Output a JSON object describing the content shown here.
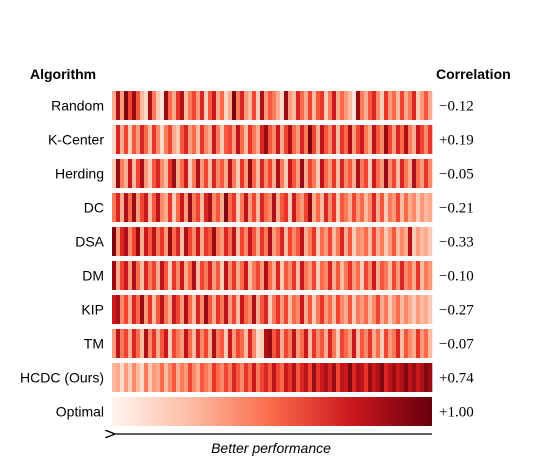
{
  "chart_data": {
    "type": "heatmap",
    "headers": {
      "left": "Algorithm",
      "right": "Correlation"
    },
    "xlabel": "Better performance",
    "rows": [
      {
        "name": "Random",
        "correlation": "−0.12",
        "cells": [
          0.3,
          0.85,
          0.35,
          0.95,
          0.6,
          0.9,
          0.55,
          0.25,
          0.15,
          0.85,
          0.45,
          0.2,
          0.1,
          0.9,
          0.5,
          0.3,
          0.65,
          0.85,
          0.25,
          0.45,
          0.6,
          0.35,
          0.7,
          0.2,
          0.55,
          0.75,
          0.3,
          0.5,
          0.15,
          0.3,
          0.95,
          0.45,
          0.7,
          0.35,
          0.25,
          0.6,
          0.2,
          0.85,
          0.35,
          0.55,
          0.45,
          0.3,
          0.15,
          0.9,
          0.35,
          0.25,
          0.7,
          0.5,
          0.3,
          0.6,
          0.25,
          0.55,
          0.65,
          0.2,
          0.45,
          0.75,
          0.3,
          0.5,
          0.35,
          0.25,
          0.1,
          0.9,
          0.45,
          0.3,
          0.55,
          0.7,
          0.4,
          0.2,
          0.65,
          0.35,
          0.5,
          0.25,
          0.6,
          0.3,
          0.45,
          0.7,
          0.2,
          0.35,
          0.55,
          0.3
        ]
      },
      {
        "name": "K-Center",
        "correlation": "+0.19",
        "cells": [
          0.15,
          0.7,
          0.3,
          0.6,
          0.2,
          0.55,
          0.35,
          0.7,
          0.5,
          0.25,
          0.65,
          0.4,
          0.15,
          0.45,
          0.6,
          0.3,
          0.2,
          0.55,
          0.7,
          0.35,
          0.5,
          0.25,
          0.65,
          0.4,
          0.3,
          0.75,
          0.45,
          0.2,
          0.55,
          0.6,
          0.35,
          0.8,
          0.5,
          0.25,
          0.65,
          0.45,
          0.3,
          0.7,
          0.9,
          0.55,
          0.4,
          0.75,
          0.3,
          0.6,
          0.85,
          0.5,
          0.35,
          0.7,
          0.45,
          0.95,
          0.6,
          0.3,
          0.8,
          0.55,
          0.4,
          0.7,
          0.25,
          0.65,
          0.5,
          0.85,
          0.35,
          0.6,
          0.75,
          0.45,
          0.3,
          0.8,
          0.55,
          0.4,
          0.9,
          0.6,
          0.35,
          0.7,
          0.5,
          0.85,
          0.45,
          0.3,
          0.75,
          0.6,
          0.4,
          0.65
        ]
      },
      {
        "name": "Herding",
        "correlation": "−0.05",
        "cells": [
          0.2,
          0.9,
          0.45,
          0.3,
          0.75,
          0.25,
          0.6,
          0.85,
          0.35,
          0.2,
          0.55,
          0.7,
          0.4,
          0.25,
          0.65,
          0.9,
          0.3,
          0.5,
          0.75,
          0.2,
          0.45,
          0.85,
          0.35,
          0.6,
          0.25,
          0.7,
          0.4,
          0.55,
          0.3,
          0.8,
          0.45,
          0.2,
          0.65,
          0.35,
          0.9,
          0.5,
          0.25,
          0.7,
          0.4,
          0.6,
          0.3,
          0.85,
          0.45,
          0.2,
          0.75,
          0.55,
          0.35,
          0.9,
          0.3,
          0.6,
          0.45,
          0.2,
          0.8,
          0.5,
          0.35,
          0.65,
          0.25,
          0.7,
          0.4,
          0.55,
          0.3,
          0.85,
          0.45,
          0.6,
          0.2,
          0.75,
          0.5,
          0.35,
          0.9,
          0.4,
          0.6,
          0.25,
          0.7,
          0.45,
          0.3,
          0.85,
          0.5,
          0.35,
          0.65,
          0.4
        ]
      },
      {
        "name": "DC",
        "correlation": "−0.21",
        "cells": [
          0.45,
          0.7,
          0.3,
          0.85,
          0.5,
          0.9,
          0.35,
          0.6,
          0.75,
          0.25,
          0.55,
          0.8,
          0.4,
          0.3,
          0.65,
          0.2,
          0.5,
          0.75,
          0.35,
          0.9,
          0.45,
          0.6,
          0.25,
          0.7,
          0.85,
          0.4,
          0.55,
          0.3,
          0.95,
          0.5,
          0.65,
          0.2,
          0.45,
          0.8,
          0.35,
          0.6,
          0.25,
          0.7,
          0.5,
          0.4,
          0.85,
          0.3,
          0.55,
          0.65,
          0.2,
          0.75,
          0.45,
          0.35,
          0.6,
          0.9,
          0.3,
          0.5,
          0.25,
          0.7,
          0.4,
          0.65,
          0.2,
          0.55,
          0.45,
          0.3,
          0.6,
          0.35,
          0.5,
          0.25,
          0.4,
          0.7,
          0.3,
          0.55,
          0.2,
          0.45,
          0.35,
          0.6,
          0.25,
          0.5,
          0.3,
          0.4,
          0.2,
          0.35,
          0.25,
          0.3
        ]
      },
      {
        "name": "DSA",
        "correlation": "−0.33",
        "cells": [
          0.95,
          0.35,
          0.7,
          0.85,
          0.4,
          0.6,
          0.9,
          0.3,
          0.75,
          0.55,
          0.8,
          0.45,
          0.65,
          0.35,
          0.9,
          0.5,
          0.7,
          0.25,
          0.85,
          0.6,
          0.4,
          0.75,
          0.3,
          0.65,
          0.55,
          0.9,
          0.45,
          0.35,
          0.7,
          0.5,
          0.8,
          0.25,
          0.6,
          0.4,
          0.75,
          0.55,
          0.3,
          0.65,
          0.45,
          0.85,
          0.35,
          0.5,
          0.7,
          0.25,
          0.6,
          0.4,
          0.55,
          0.8,
          0.3,
          0.45,
          0.65,
          0.2,
          0.5,
          0.35,
          0.6,
          0.25,
          0.45,
          0.7,
          0.3,
          0.55,
          0.2,
          0.4,
          0.35,
          0.5,
          0.25,
          0.6,
          0.3,
          0.45,
          0.2,
          0.35,
          0.55,
          0.25,
          0.4,
          0.3,
          0.8,
          0.2,
          0.35,
          0.25,
          0.3,
          0.2
        ]
      },
      {
        "name": "DM",
        "correlation": "−0.10",
        "cells": [
          0.9,
          0.3,
          0.6,
          0.75,
          0.35,
          0.85,
          0.5,
          0.25,
          0.7,
          0.45,
          0.6,
          0.3,
          0.8,
          0.55,
          0.2,
          0.65,
          0.4,
          0.75,
          0.3,
          0.5,
          0.85,
          0.25,
          0.6,
          0.45,
          0.7,
          0.35,
          0.55,
          0.2,
          0.8,
          0.4,
          0.65,
          0.3,
          0.5,
          0.75,
          0.25,
          0.45,
          0.6,
          0.35,
          0.85,
          0.5,
          0.3,
          0.7,
          0.2,
          0.55,
          0.4,
          0.65,
          0.25,
          0.75,
          0.45,
          0.35,
          0.6,
          0.2,
          0.5,
          0.4,
          0.7,
          0.3,
          0.55,
          0.25,
          0.45,
          0.65,
          0.35,
          0.5,
          0.2,
          0.6,
          0.4,
          0.75,
          0.3,
          0.55,
          0.45,
          0.25,
          0.6,
          0.35,
          0.7,
          0.4,
          0.5,
          0.3,
          0.65,
          0.25,
          0.45,
          0.35
        ]
      },
      {
        "name": "KIP",
        "correlation": "−0.27",
        "cells": [
          0.75,
          0.85,
          0.4,
          0.6,
          0.3,
          0.7,
          0.5,
          0.9,
          0.35,
          0.65,
          0.25,
          0.55,
          0.8,
          0.45,
          0.3,
          0.75,
          0.6,
          0.35,
          0.85,
          0.5,
          0.25,
          0.7,
          0.4,
          0.9,
          0.55,
          0.3,
          0.65,
          0.45,
          0.8,
          0.35,
          0.6,
          0.25,
          0.75,
          0.5,
          0.4,
          0.85,
          0.3,
          0.55,
          0.7,
          0.2,
          0.45,
          0.65,
          0.35,
          0.6,
          0.25,
          0.5,
          0.4,
          0.75,
          0.3,
          0.55,
          0.2,
          0.45,
          0.65,
          0.35,
          0.5,
          0.25,
          0.6,
          0.4,
          0.3,
          0.55,
          0.2,
          0.45,
          0.35,
          0.5,
          0.25,
          0.4,
          0.6,
          0.3,
          0.45,
          0.2,
          0.35,
          0.5,
          0.25,
          0.4,
          0.3,
          0.2,
          0.35,
          0.25,
          0.3,
          0.2
        ]
      },
      {
        "name": "TM",
        "correlation": "−0.07",
        "cells": [
          0.35,
          0.8,
          0.45,
          0.6,
          0.3,
          0.7,
          0.5,
          0.25,
          0.85,
          0.4,
          0.65,
          0.3,
          0.55,
          0.75,
          0.2,
          0.6,
          0.45,
          0.35,
          0.8,
          0.5,
          0.25,
          0.7,
          0.4,
          0.6,
          0.3,
          0.85,
          0.45,
          0.55,
          0.2,
          0.75,
          0.35,
          0.6,
          0.5,
          0.25,
          0.7,
          0.4,
          0.15,
          0.2,
          0.85,
          0.9,
          0.55,
          0.7,
          0.3,
          0.6,
          0.45,
          0.8,
          0.35,
          0.5,
          0.75,
          0.25,
          0.65,
          0.4,
          0.55,
          0.3,
          0.7,
          0.45,
          0.2,
          0.6,
          0.5,
          0.35,
          0.75,
          0.25,
          0.55,
          0.4,
          0.65,
          0.3,
          0.5,
          0.2,
          0.6,
          0.35,
          0.45,
          0.7,
          0.25,
          0.55,
          0.4,
          0.3,
          0.65,
          0.35,
          0.5,
          0.25
        ]
      },
      {
        "name": "HCDC (Ours)",
        "correlation": "+0.74",
        "cells": [
          0.25,
          0.3,
          0.15,
          0.35,
          0.2,
          0.4,
          0.25,
          0.15,
          0.45,
          0.2,
          0.35,
          0.3,
          0.5,
          0.25,
          0.4,
          0.55,
          0.3,
          0.45,
          0.35,
          0.6,
          0.4,
          0.3,
          0.55,
          0.45,
          0.35,
          0.65,
          0.5,
          0.4,
          0.6,
          0.45,
          0.7,
          0.55,
          0.4,
          0.65,
          0.5,
          0.75,
          0.45,
          0.6,
          0.7,
          0.55,
          0.8,
          0.6,
          0.5,
          0.75,
          0.65,
          0.85,
          0.55,
          0.7,
          0.8,
          0.6,
          0.9,
          0.65,
          0.75,
          0.85,
          0.7,
          0.9,
          0.6,
          0.8,
          0.75,
          0.95,
          0.7,
          0.85,
          0.8,
          0.65,
          0.9,
          0.75,
          0.85,
          0.95,
          0.7,
          0.8,
          0.9,
          0.75,
          0.85,
          0.95,
          0.8,
          0.9,
          0.75,
          0.85,
          0.95,
          0.9
        ]
      },
      {
        "name": "Optimal",
        "correlation": "+1.00",
        "gradient": true
      }
    ],
    "colormap": {
      "low": "#fff5f0",
      "mid": "#ef3b2c",
      "high": "#67000d"
    }
  }
}
